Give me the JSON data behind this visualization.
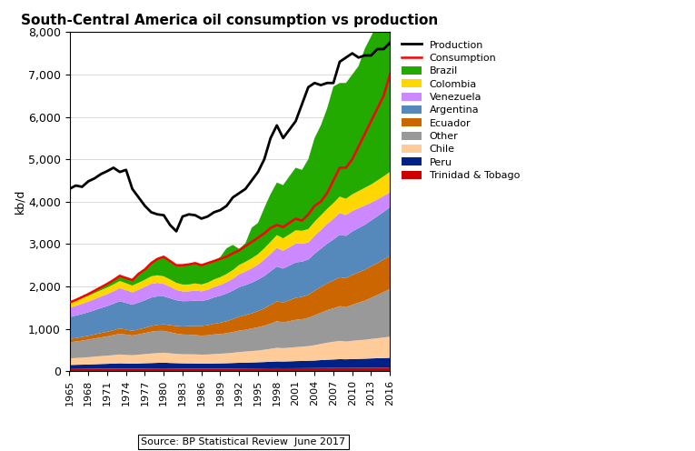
{
  "title": "South-Central America oil consumption vs production",
  "ylabel": "kb/d",
  "source_text": "Source: BP Statistical Review  June 2017",
  "years": [
    1965,
    1966,
    1967,
    1968,
    1969,
    1970,
    1971,
    1972,
    1973,
    1974,
    1975,
    1976,
    1977,
    1978,
    1979,
    1980,
    1981,
    1982,
    1983,
    1984,
    1985,
    1986,
    1987,
    1988,
    1989,
    1990,
    1991,
    1992,
    1993,
    1994,
    1995,
    1996,
    1997,
    1998,
    1999,
    2000,
    2001,
    2002,
    2003,
    2004,
    2005,
    2006,
    2007,
    2008,
    2009,
    2010,
    2011,
    2012,
    2013,
    2014,
    2015,
    2016
  ],
  "production": [
    4300,
    4380,
    4350,
    4480,
    4550,
    4650,
    4720,
    4800,
    4700,
    4750,
    4300,
    4100,
    3900,
    3750,
    3700,
    3680,
    3450,
    3300,
    3650,
    3700,
    3680,
    3600,
    3650,
    3750,
    3800,
    3900,
    4100,
    4200,
    4300,
    4500,
    4700,
    5000,
    5500,
    5800,
    5500,
    5700,
    5900,
    6300,
    6700,
    6800,
    6750,
    6800,
    6800,
    7300,
    7400,
    7500,
    7400,
    7450,
    7450,
    7600,
    7600,
    7750
  ],
  "consumption": [
    1620,
    1680,
    1750,
    1820,
    1900,
    1980,
    2060,
    2150,
    2250,
    2200,
    2150,
    2300,
    2400,
    2550,
    2650,
    2700,
    2600,
    2500,
    2500,
    2520,
    2550,
    2500,
    2550,
    2600,
    2650,
    2700,
    2780,
    2850,
    2950,
    3050,
    3150,
    3250,
    3380,
    3450,
    3400,
    3500,
    3600,
    3550,
    3700,
    3900,
    4000,
    4200,
    4500,
    4800,
    4800,
    5000,
    5300,
    5600,
    5900,
    6200,
    6500,
    7000
  ],
  "trinidad": [
    50,
    52,
    53,
    54,
    56,
    57,
    58,
    59,
    61,
    59,
    58,
    60,
    62,
    63,
    64,
    65,
    63,
    62,
    61,
    60,
    59,
    58,
    58,
    59,
    60,
    61,
    62,
    63,
    64,
    65,
    66,
    67,
    68,
    70,
    68,
    69,
    70,
    71,
    72,
    73,
    74,
    75,
    76,
    77,
    76,
    77,
    78,
    79,
    80,
    81,
    82,
    83
  ],
  "peru": [
    95,
    98,
    100,
    103,
    107,
    112,
    115,
    120,
    124,
    121,
    118,
    122,
    125,
    128,
    132,
    135,
    130,
    127,
    124,
    123,
    122,
    119,
    120,
    122,
    124,
    126,
    130,
    134,
    137,
    140,
    144,
    148,
    154,
    160,
    160,
    163,
    167,
    170,
    173,
    178,
    187,
    194,
    200,
    206,
    204,
    207,
    212,
    215,
    220,
    224,
    228,
    232
  ],
  "chile": [
    155,
    160,
    165,
    173,
    180,
    186,
    192,
    200,
    208,
    205,
    200,
    207,
    215,
    225,
    230,
    235,
    228,
    220,
    215,
    215,
    215,
    214,
    215,
    222,
    228,
    234,
    242,
    254,
    262,
    270,
    278,
    291,
    305,
    320,
    315,
    322,
    330,
    337,
    347,
    362,
    382,
    402,
    417,
    432,
    420,
    432,
    440,
    447,
    460,
    472,
    485,
    498
  ],
  "other": [
    380,
    390,
    402,
    415,
    428,
    442,
    456,
    472,
    490,
    478,
    466,
    482,
    498,
    516,
    524,
    516,
    498,
    478,
    466,
    462,
    455,
    448,
    455,
    464,
    465,
    474,
    490,
    506,
    515,
    532,
    549,
    568,
    595,
    628,
    608,
    627,
    645,
    648,
    668,
    706,
    737,
    769,
    790,
    820,
    812,
    851,
    886,
    923,
    972,
    1022,
    1074,
    1128
  ],
  "ecuador": [
    78,
    82,
    86,
    90,
    96,
    104,
    110,
    117,
    124,
    118,
    111,
    116,
    124,
    134,
    143,
    154,
    166,
    178,
    190,
    202,
    214,
    226,
    239,
    253,
    268,
    283,
    306,
    330,
    344,
    358,
    381,
    406,
    443,
    469,
    469,
    493,
    518,
    529,
    542,
    580,
    606,
    633,
    657,
    681,
    681,
    703,
    716,
    729,
    742,
    754,
    767,
    780
  ],
  "argentina": [
    515,
    528,
    542,
    556,
    572,
    588,
    603,
    622,
    643,
    629,
    615,
    632,
    650,
    670,
    672,
    660,
    636,
    610,
    595,
    592,
    602,
    590,
    598,
    620,
    634,
    655,
    671,
    694,
    708,
    723,
    741,
    764,
    791,
    822,
    800,
    818,
    836,
    828,
    832,
    872,
    902,
    933,
    966,
    1002,
    999,
    1027,
    1044,
    1062,
    1081,
    1102,
    1124,
    1148
  ],
  "venezuela": [
    225,
    233,
    242,
    252,
    262,
    272,
    284,
    296,
    310,
    302,
    293,
    304,
    315,
    326,
    319,
    295,
    270,
    244,
    231,
    229,
    237,
    228,
    236,
    246,
    255,
    267,
    282,
    306,
    322,
    338,
    356,
    390,
    415,
    441,
    422,
    433,
    446,
    421,
    404,
    424,
    445,
    467,
    491,
    515,
    493,
    481,
    469,
    457,
    420,
    399,
    376,
    352
  ],
  "colombia": [
    122,
    127,
    131,
    136,
    143,
    149,
    154,
    161,
    167,
    163,
    158,
    163,
    168,
    175,
    179,
    178,
    172,
    165,
    162,
    162,
    166,
    162,
    168,
    178,
    185,
    192,
    203,
    218,
    227,
    236,
    247,
    264,
    282,
    300,
    293,
    302,
    312,
    308,
    314,
    330,
    342,
    354,
    369,
    385,
    383,
    394,
    404,
    415,
    430,
    446,
    462,
    480
  ],
  "brazil": [
    0,
    10,
    29,
    41,
    56,
    70,
    88,
    103,
    123,
    125,
    131,
    214,
    263,
    313,
    387,
    462,
    437,
    416,
    452,
    475,
    490,
    455,
    461,
    436,
    475,
    608,
    594,
    380,
    441,
    724,
    736,
    952,
    1127,
    1240,
    1255,
    1374,
    1476,
    1439,
    1647,
    1975,
    2125,
    2373,
    2750,
    2682,
    2732,
    2828,
    2949,
    3283,
    3495,
    3700,
    3877,
    4299
  ],
  "colors": {
    "brazil": "#22aa00",
    "colombia": "#ffd700",
    "venezuela": "#cc88ff",
    "argentina": "#5588bb",
    "ecuador": "#cc6600",
    "other": "#999999",
    "chile": "#ffcc99",
    "peru": "#002288",
    "trinidad": "#cc0000"
  },
  "ylim": [
    0,
    8000
  ],
  "yticks": [
    0,
    1000,
    2000,
    3000,
    4000,
    5000,
    6000,
    7000,
    8000
  ],
  "figsize": [
    7.65,
    4.96
  ],
  "dpi": 100
}
